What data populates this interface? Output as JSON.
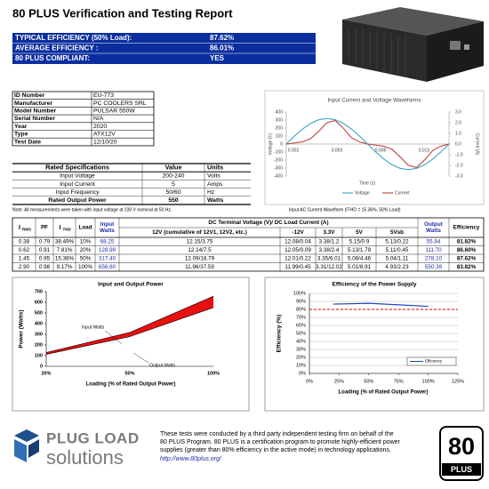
{
  "header": {
    "title": "80 PLUS Verification and Testing Report"
  },
  "summary": {
    "rows": [
      [
        "TYPICAL EFFICIENCY (50% Load):",
        "87.62%"
      ],
      [
        "AVERAGE EFFICIENCY :",
        "86.01%"
      ],
      [
        "80 PLUS COMPLIANT:",
        "YES"
      ]
    ]
  },
  "info_table": {
    "rows": [
      [
        "ID Number",
        "EU-773"
      ],
      [
        "Manufacturer",
        "PC COOLERS SRL"
      ],
      [
        "Model Number",
        "PULSAR 550W"
      ],
      [
        "Serial Number",
        "N/A"
      ],
      [
        "Year",
        "2020"
      ],
      [
        "Type",
        "ATX12V"
      ],
      [
        "Test Date",
        "12/10/20"
      ]
    ]
  },
  "rated_specs": {
    "header": [
      "Rated Specifications",
      "Value",
      "Units"
    ],
    "rows": [
      [
        "Input Voltage",
        "200-240",
        "Volts"
      ],
      [
        "Input Current",
        "5",
        "Amps"
      ],
      [
        "Input Frequency",
        "50/60",
        "Hz"
      ],
      [
        "Rated Output Power",
        "550",
        "Watts"
      ]
    ],
    "note": "Note: All measurements were taken with input voltage at 230 V nominal at 50 Hz."
  },
  "waveform_caption": "Input AC Current Waveform (ITHD = 15.36%, 50% Load)",
  "test_table": {
    "group_header": "DC Terminal Voltage (V)/ DC Load Current (A)",
    "columns": [
      {
        "symbol": "I",
        "subscript": "RMS"
      },
      {
        "lines": [
          "PF"
        ]
      },
      {
        "symbol": "I",
        "subscript": "THD"
      },
      {
        "lines": [
          "Load"
        ]
      },
      {
        "lines": [
          "Input",
          "Watts"
        ]
      },
      {
        "lines": [
          "12V (cumulative of 12V1, 12V2, etc.)"
        ]
      },
      {
        "lines": [
          "-12V"
        ]
      },
      {
        "lines": [
          "3.3V"
        ]
      },
      {
        "lines": [
          "5V"
        ]
      },
      {
        "lines": [
          "5Vsb"
        ]
      },
      {
        "lines": [
          "Output",
          "Watts"
        ]
      },
      {
        "lines": [
          "Efficiency"
        ]
      }
    ],
    "rows": [
      [
        "0.38",
        "0.79",
        "38.49%",
        "10%",
        "68.25",
        "12.15/3.75",
        "12.08/0.04",
        "3.38/1.2",
        "5.15/0.9",
        "5.13/0.22",
        "55.84",
        "81.82%"
      ],
      [
        "0.62",
        "0.91",
        "7.81%",
        "20%",
        "128.99",
        "12.14/7.5",
        "12.05/0.09",
        "3.38/2.4",
        "5.13/1.79",
        "5.11/0.45",
        "111.70",
        "86.60%"
      ],
      [
        "1.45",
        "0.95",
        "15.36%",
        "50%",
        "317.40",
        "12.09/18.79",
        "12.01/0.22",
        "3.35/6.01",
        "5.08/4.46",
        "5.04/1.11",
        "278.10",
        "87.62%"
      ],
      [
        "2.90",
        "0.98",
        "9.17%",
        "100%",
        "656.60",
        "11.96/37.59",
        "11.99/0.45",
        "3.31/12.02",
        "5.01/8.91",
        "4.93/2.23",
        "550.39",
        "83.82%"
      ]
    ]
  },
  "chart_data": [
    {
      "type": "line",
      "title": "Input Current and Voltage Waveforms",
      "y_label": "Voltage (V)",
      "y2_label": "Current (A)",
      "x_label": "Time (s)",
      "x_tick_labels": [
        "0.002",
        "0.003",
        "0.008",
        "0.013"
      ],
      "ylim": [
        -400,
        400
      ],
      "yticks": [
        -400,
        -300,
        -200,
        -100,
        0,
        100,
        200,
        300,
        400
      ],
      "y2lim": [
        -3,
        3
      ],
      "y2ticks": [
        {
          "value": -3,
          "label": "-3.0"
        },
        {
          "value": -2,
          "label": "-2.0"
        },
        {
          "value": -1,
          "label": "-1.0"
        },
        {
          "value": 0,
          "label": "0.0"
        },
        {
          "value": 1,
          "label": "1.0"
        },
        {
          "value": 2,
          "label": "2.0"
        },
        {
          "value": 3,
          "label": "3.0"
        }
      ],
      "series": [
        {
          "name": "Voltage",
          "color": "#4bacc6",
          "values": [
            0,
            99,
            188,
            259,
            304,
            320,
            304,
            259,
            188,
            99,
            0,
            -99,
            -188,
            -259,
            -304,
            -320,
            -304,
            -259,
            -188,
            -99,
            0
          ]
        },
        {
          "name": "Current",
          "color": "#c0504d",
          "axis": "y2",
          "values": [
            0,
            0.1,
            0.2,
            0.5,
            1.2,
            2.0,
            2.2,
            1.5,
            0.6,
            0.2,
            0,
            -0.1,
            -0.2,
            -0.5,
            -1.2,
            -2.0,
            -2.2,
            -1.5,
            -0.6,
            -0.2,
            0
          ]
        }
      ],
      "legend": "bottom"
    },
    {
      "type": "area",
      "title": "Input and Output Power",
      "y_label": "Power (Watts)",
      "x_label": "Loading (% of Rated Output Power)",
      "categories": [
        "20%",
        "50%",
        "100%"
      ],
      "ylim": [
        0,
        700
      ],
      "yticks": [
        0,
        100,
        200,
        300,
        400,
        500,
        600,
        700
      ],
      "fill_color": "#e8100f",
      "series": [
        {
          "name": "Input Watts",
          "values": [
            128.99,
            317.4,
            656.6
          ]
        },
        {
          "name": "Output Watts",
          "values": [
            111.7,
            278.1,
            550.39
          ]
        }
      ]
    },
    {
      "type": "line",
      "title": "Efficiency of the Power Supply",
      "y_label": "Efficiency (%)",
      "x_label": "Loading (% of Rated Output Power)",
      "xlim": [
        0,
        125
      ],
      "xticks": [
        {
          "value": 0,
          "label": "0%"
        },
        {
          "value": 25,
          "label": "25%"
        },
        {
          "value": 50,
          "label": "50%"
        },
        {
          "value": 75,
          "label": "75%"
        },
        {
          "value": 100,
          "label": "100%"
        },
        {
          "value": 125,
          "label": "125%"
        }
      ],
      "ylim": [
        0,
        100
      ],
      "yticks": [
        {
          "value": 0,
          "label": "0%"
        },
        {
          "value": 10,
          "label": "10%"
        },
        {
          "value": 20,
          "label": "20%"
        },
        {
          "value": 30,
          "label": "30%"
        },
        {
          "value": 40,
          "label": "40%"
        },
        {
          "value": 50,
          "label": "50%"
        },
        {
          "value": 60,
          "label": "60%"
        },
        {
          "value": 70,
          "label": "70%"
        },
        {
          "value": 80,
          "label": "80%"
        },
        {
          "value": 90,
          "label": "90%"
        },
        {
          "value": 100,
          "label": "100%"
        }
      ],
      "grid": true,
      "x": [
        20,
        50,
        100
      ],
      "series": [
        {
          "name": "Efficiency",
          "color": "#1f3fbf",
          "values": [
            86.6,
            87.62,
            83.82
          ]
        }
      ],
      "threshold": {
        "value": 80,
        "color": "#e00000"
      },
      "legend": "lower right"
    }
  ],
  "footer": {
    "logo_top": "PLUG LOAD",
    "logo_bottom": "solutions",
    "text_lines": [
      "These tests were conducted by a third party independent testing firm on behalf of the",
      "80 PLUS Program. 80 PLUS is a certification program to promote highly-efficient power",
      "supplies (greater than 80% efficiency in the active mode) in technology applications."
    ],
    "link": "http://www.80plus.org/",
    "badge_number": "80",
    "badge_text": "PLUS"
  }
}
